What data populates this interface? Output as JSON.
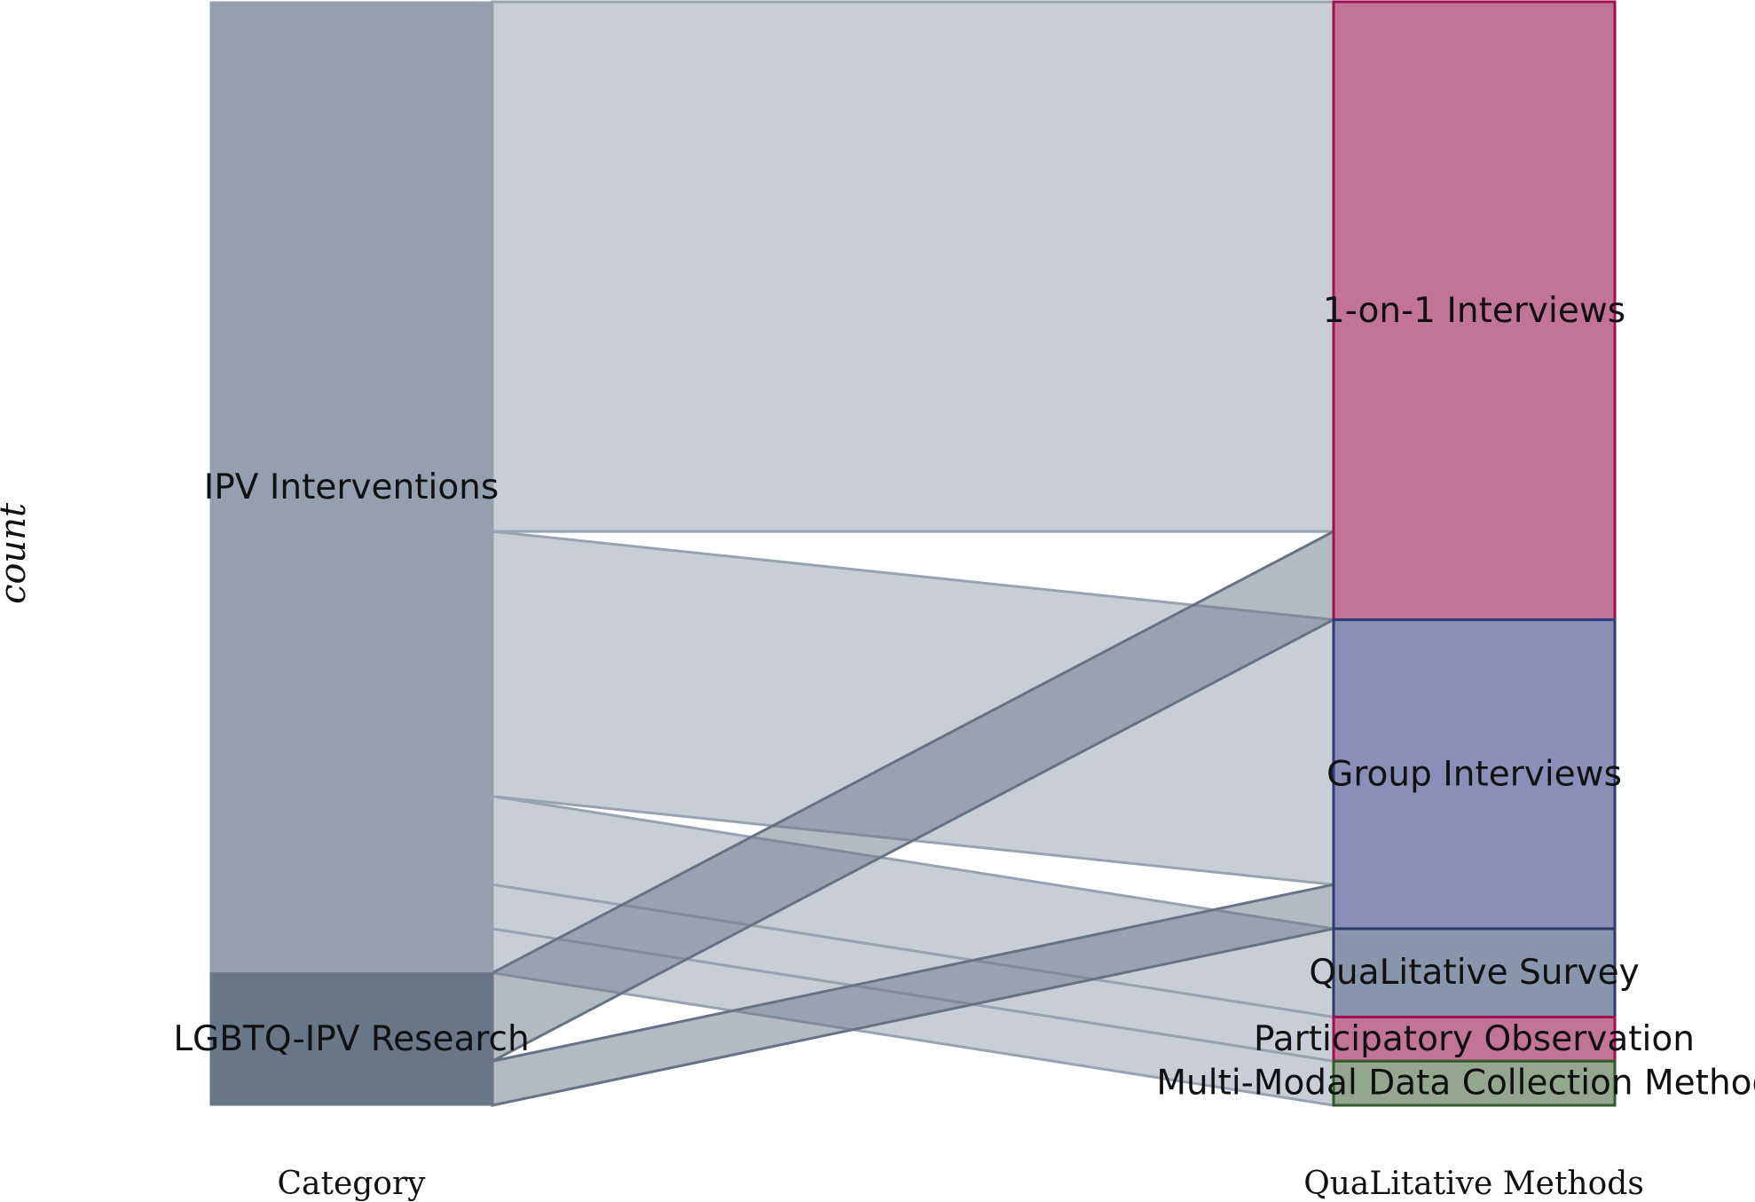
{
  "chart_data": {
    "type": "alluvial",
    "ylabel": "count",
    "axes": [
      "Category",
      "QuaLitative Methods"
    ],
    "left_nodes": [
      {
        "name": "IPV Interventions",
        "value": 22,
        "fill": "#969faf",
        "stroke": "#969faf"
      },
      {
        "name": "LGBTQ-IPV Research",
        "value": 3,
        "fill": "#687688",
        "stroke": "#687688"
      }
    ],
    "right_nodes": [
      {
        "name": "1-on-1 Interviews",
        "value": 14,
        "fill": "#c27496",
        "stroke": "#9e1052"
      },
      {
        "name": "Group Interviews",
        "value": 7,
        "fill": "#8b8eb7",
        "stroke": "#2e3a7a"
      },
      {
        "name": "QuaLitative Survey",
        "value": 2,
        "fill": "#8796ac",
        "stroke": "#2e3a6a"
      },
      {
        "name": "Participatory Observation",
        "value": 1,
        "fill": "#c27496",
        "stroke": "#9e1052"
      },
      {
        "name": "Multi-Modal Data Collection Methods",
        "value": 1,
        "fill": "#94a78e",
        "stroke": "#2f5a2a"
      }
    ],
    "flows": [
      {
        "source": "IPV Interventions",
        "target": "1-on-1 Interviews",
        "value": 12
      },
      {
        "source": "IPV Interventions",
        "target": "Group Interviews",
        "value": 6
      },
      {
        "source": "IPV Interventions",
        "target": "QuaLitative Survey",
        "value": 2
      },
      {
        "source": "IPV Interventions",
        "target": "Participatory Observation",
        "value": 1
      },
      {
        "source": "IPV Interventions",
        "target": "Multi-Modal Data Collection Methods",
        "value": 1
      },
      {
        "source": "LGBTQ-IPV Research",
        "target": "1-on-1 Interviews",
        "value": 2
      },
      {
        "source": "LGBTQ-IPV Research",
        "target": "Group Interviews",
        "value": 1
      }
    ],
    "flow_colors": {
      "IPV Interventions": {
        "fill": "#c9ced6",
        "stroke": "#98a2b0"
      },
      "LGBTQ-IPV Research": {
        "fill": "#6a7686",
        "stroke": "#677384"
      }
    }
  }
}
